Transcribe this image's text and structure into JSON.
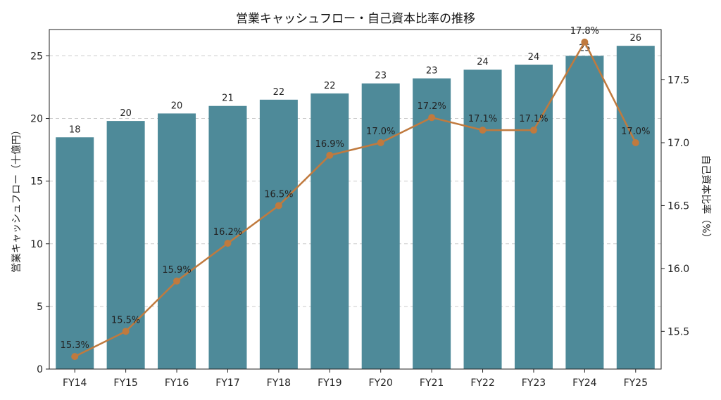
{
  "chart_data": {
    "type": "bar+line",
    "title": "営業キャッシュフロー・自己資本比率の推移",
    "categories": [
      "FY14",
      "FY15",
      "FY16",
      "FY17",
      "FY18",
      "FY19",
      "FY20",
      "FY21",
      "FY22",
      "FY23",
      "FY24",
      "FY25"
    ],
    "bar_series": {
      "axis": "left",
      "values": [
        18.5,
        19.8,
        20.4,
        21.0,
        21.5,
        22.0,
        22.8,
        23.2,
        23.9,
        24.3,
        25.0,
        25.8
      ],
      "labels": [
        "18",
        "20",
        "20",
        "21",
        "22",
        "22",
        "23",
        "23",
        "24",
        "24",
        "25",
        "26"
      ],
      "color": "#4e8a99"
    },
    "line_series": {
      "axis": "right",
      "values": [
        15.3,
        15.5,
        15.9,
        16.2,
        16.5,
        16.9,
        17.0,
        17.2,
        17.1,
        17.1,
        17.8,
        17.0
      ],
      "labels": [
        "15.3%",
        "15.5%",
        "15.9%",
        "16.2%",
        "16.5%",
        "16.9%",
        "17.0%",
        "17.2%",
        "17.1%",
        "17.1%",
        "17.8%",
        "17.0%"
      ],
      "color": "#c07a3e"
    },
    "ylabel_left": "営業キャッシュフロー（十億円）",
    "ylabel_right": "自己資本比率（%）",
    "ylim_left": [
      0,
      27.1
    ],
    "ylim_right": [
      15.2,
      17.9
    ],
    "yticks_left": [
      "0",
      "5",
      "10",
      "15",
      "20",
      "25"
    ],
    "yticks_right": [
      "15.5",
      "16.0",
      "16.5",
      "17.0",
      "17.5"
    ],
    "grid": "horizontal-dashed"
  }
}
